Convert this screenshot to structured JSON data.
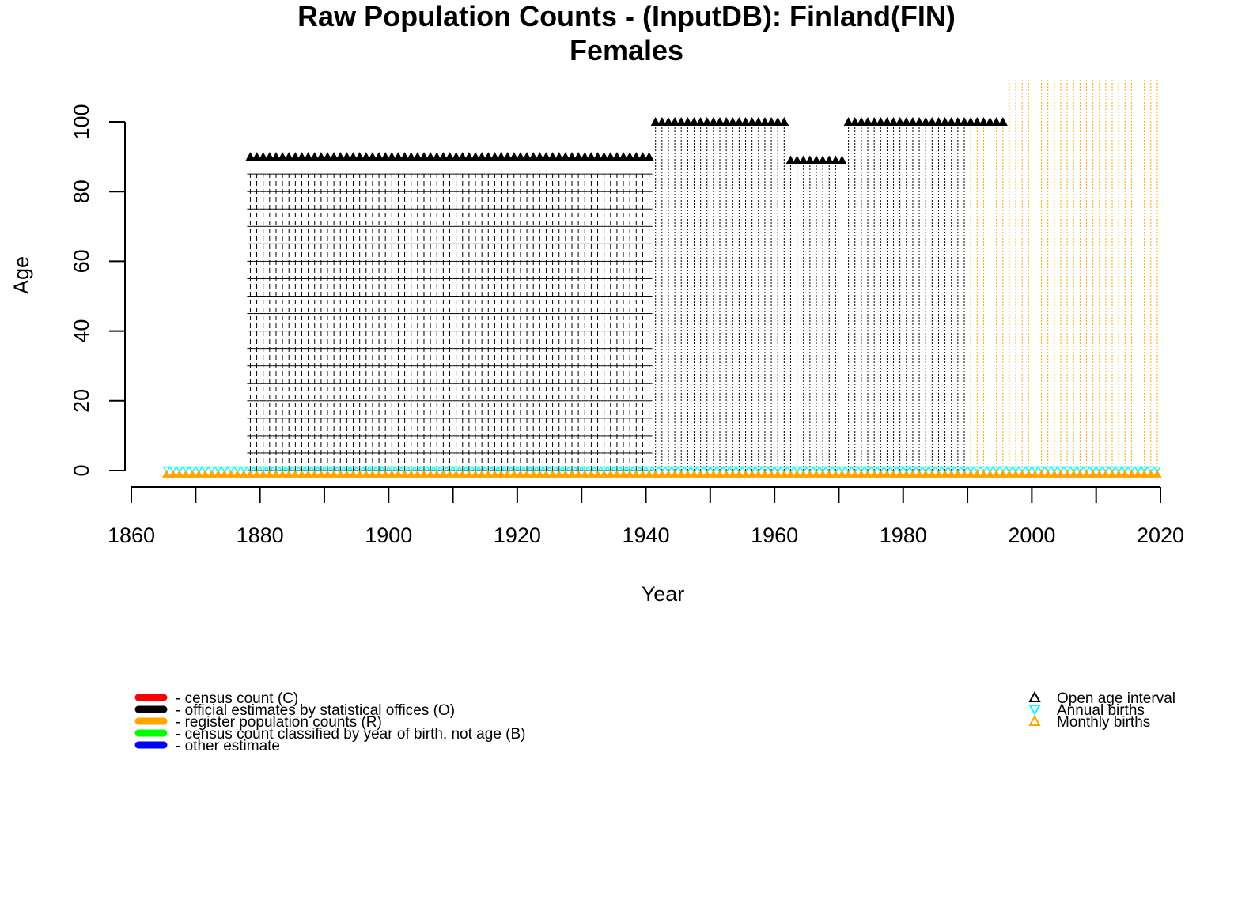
{
  "chart_data": {
    "type": "scatter",
    "title": "Raw Population Counts - (InputDB): Finland(FIN)",
    "subtitle": "Females",
    "xlabel": "Year",
    "ylabel": "Age",
    "xlim": [
      1860,
      2020
    ],
    "ylim": [
      0,
      100
    ],
    "xticks": [
      1860,
      1880,
      1900,
      1920,
      1940,
      1960,
      1980,
      2000,
      2020
    ],
    "yticks": [
      0,
      20,
      40,
      60,
      80,
      100
    ],
    "grid": false,
    "colors": {
      "C": "#ff0000",
      "O": "#000000",
      "R": "#ffa500",
      "B": "#00ff00",
      "other": "#0000ff",
      "annual_births": "#00ffff",
      "monthly_births": "#ffa500"
    },
    "series": [
      {
        "code": "O",
        "years": [
          1878,
          1940
        ],
        "age_max": 85,
        "open_age": 90,
        "step": 5
      },
      {
        "code": "O",
        "years": [
          1941,
          1961
        ],
        "age_max": 99,
        "open_age": 100,
        "step": 1
      },
      {
        "code": "O",
        "years": [
          1962,
          1970
        ],
        "age_max": 88,
        "open_age": 89,
        "step": 1
      },
      {
        "code": "O",
        "years": [
          1971,
          1989
        ],
        "age_max": 99,
        "open_age": 100,
        "step": 1
      },
      {
        "code": "R",
        "years": [
          1990,
          1995
        ],
        "age_max": 99,
        "open_age": 100,
        "step": 1
      },
      {
        "code": "R",
        "years": [
          1996,
          2019
        ],
        "age_max": 112,
        "open_age": null,
        "step": 1
      }
    ],
    "births": {
      "annual": {
        "years": [
          1865,
          2019
        ],
        "age": 0.3
      },
      "monthly": {
        "years": [
          1865,
          2019
        ],
        "age": -1
      }
    },
    "legend_left": [
      {
        "code": "C",
        "label": "- census count (C)"
      },
      {
        "code": "O",
        "label": "- official estimates by statistical offices (O)"
      },
      {
        "code": "R",
        "label": "- register population counts (R)"
      },
      {
        "code": "B",
        "label": "- census count classified by year of birth, not age (B)"
      },
      {
        "code": "other",
        "label": "- other estimate"
      }
    ],
    "legend_right": [
      {
        "symbol": "open-triangle",
        "color_key": "O",
        "label": "Open age interval"
      },
      {
        "symbol": "down-triangle",
        "color_key": "annual_births",
        "label": "Annual births"
      },
      {
        "symbol": "up-triangle",
        "color_key": "monthly_births",
        "label": "Monthly births"
      }
    ],
    "legend_placement": "bottom"
  }
}
